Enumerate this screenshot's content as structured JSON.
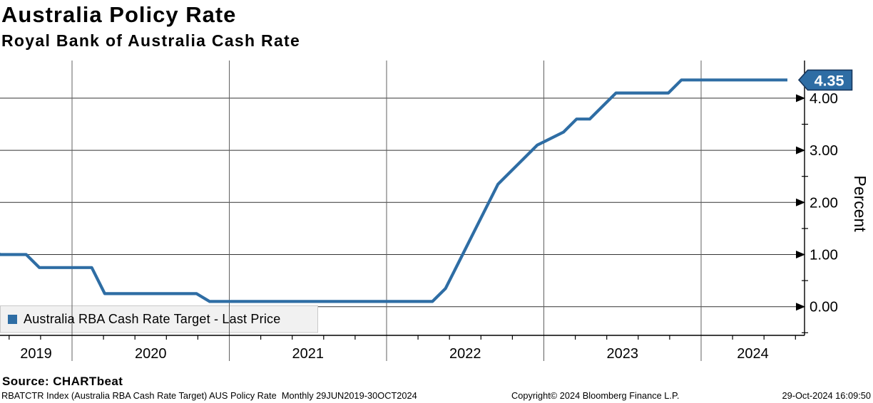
{
  "header": {
    "title": "Australia Policy Rate",
    "subtitle": "Royal Bank of Australia Cash Rate"
  },
  "chart_data": {
    "type": "line",
    "title": "Australia Policy Rate",
    "subtitle": "Royal Bank of Australia Cash Rate",
    "ylabel": "Percent",
    "grid": true,
    "legend_position": "bottom-left",
    "x_tick_labels": [
      "2019",
      "2020",
      "2021",
      "2022",
      "2023",
      "2024"
    ],
    "x_range": [
      "2019-06",
      "2024-10"
    ],
    "ylim": [
      -0.55,
      4.73
    ],
    "y_ticks": [
      {
        "value": 0.0,
        "label": "0.00"
      },
      {
        "value": 1.0,
        "label": "1.00"
      },
      {
        "value": 2.0,
        "label": "2.00"
      },
      {
        "value": 3.0,
        "label": "3.00"
      },
      {
        "value": 4.0,
        "label": "4.00"
      }
    ],
    "y_minor_ticks": [
      -0.5,
      0.5,
      1.5,
      2.5,
      3.5
    ],
    "last_price": {
      "label": "4.35",
      "value": 4.35
    },
    "series": [
      {
        "name": "Australia RBA Cash Rate Target - Last Price",
        "color": "#2e6da4",
        "points": [
          [
            "2019-06",
            1.25
          ],
          [
            "2019-07",
            1.0
          ],
          [
            "2019-09",
            1.0
          ],
          [
            "2019-10",
            0.75
          ],
          [
            "2020-02",
            0.75
          ],
          [
            "2020-03",
            0.25
          ],
          [
            "2020-10",
            0.25
          ],
          [
            "2020-11",
            0.1
          ],
          [
            "2022-04",
            0.1
          ],
          [
            "2022-05",
            0.35
          ],
          [
            "2022-06",
            0.85
          ],
          [
            "2022-07",
            1.35
          ],
          [
            "2022-08",
            1.85
          ],
          [
            "2022-09",
            2.35
          ],
          [
            "2022-10",
            2.6
          ],
          [
            "2022-11",
            2.85
          ],
          [
            "2022-12",
            3.1
          ],
          [
            "2023-02",
            3.35
          ],
          [
            "2023-03",
            3.6
          ],
          [
            "2023-04",
            3.6
          ],
          [
            "2023-05",
            3.85
          ],
          [
            "2023-06",
            4.1
          ],
          [
            "2023-10",
            4.1
          ],
          [
            "2023-11",
            4.35
          ],
          [
            "2024-10",
            4.35
          ]
        ]
      }
    ]
  },
  "colors": {
    "line": "#2e6da4",
    "tag_fill": "#2e6da4",
    "tag_border": "#17375e",
    "tag_text": "#ffffff",
    "legend_bg": "#f1f1f1",
    "legend_border": "#c9c9c9",
    "grid_h": "#333333",
    "grid_v": "#606060",
    "axis": "#000000"
  },
  "footer": {
    "source": "Source: CHARTbeat",
    "description": "RBATCTR Index (Australia RBA Cash Rate Target) AUS Policy Rate  Monthly 29JUN2019-30OCT2024",
    "copyright": "Copyright© 2024 Bloomberg Finance L.P.",
    "timestamp": "29-Oct-2024 16:09:50"
  }
}
